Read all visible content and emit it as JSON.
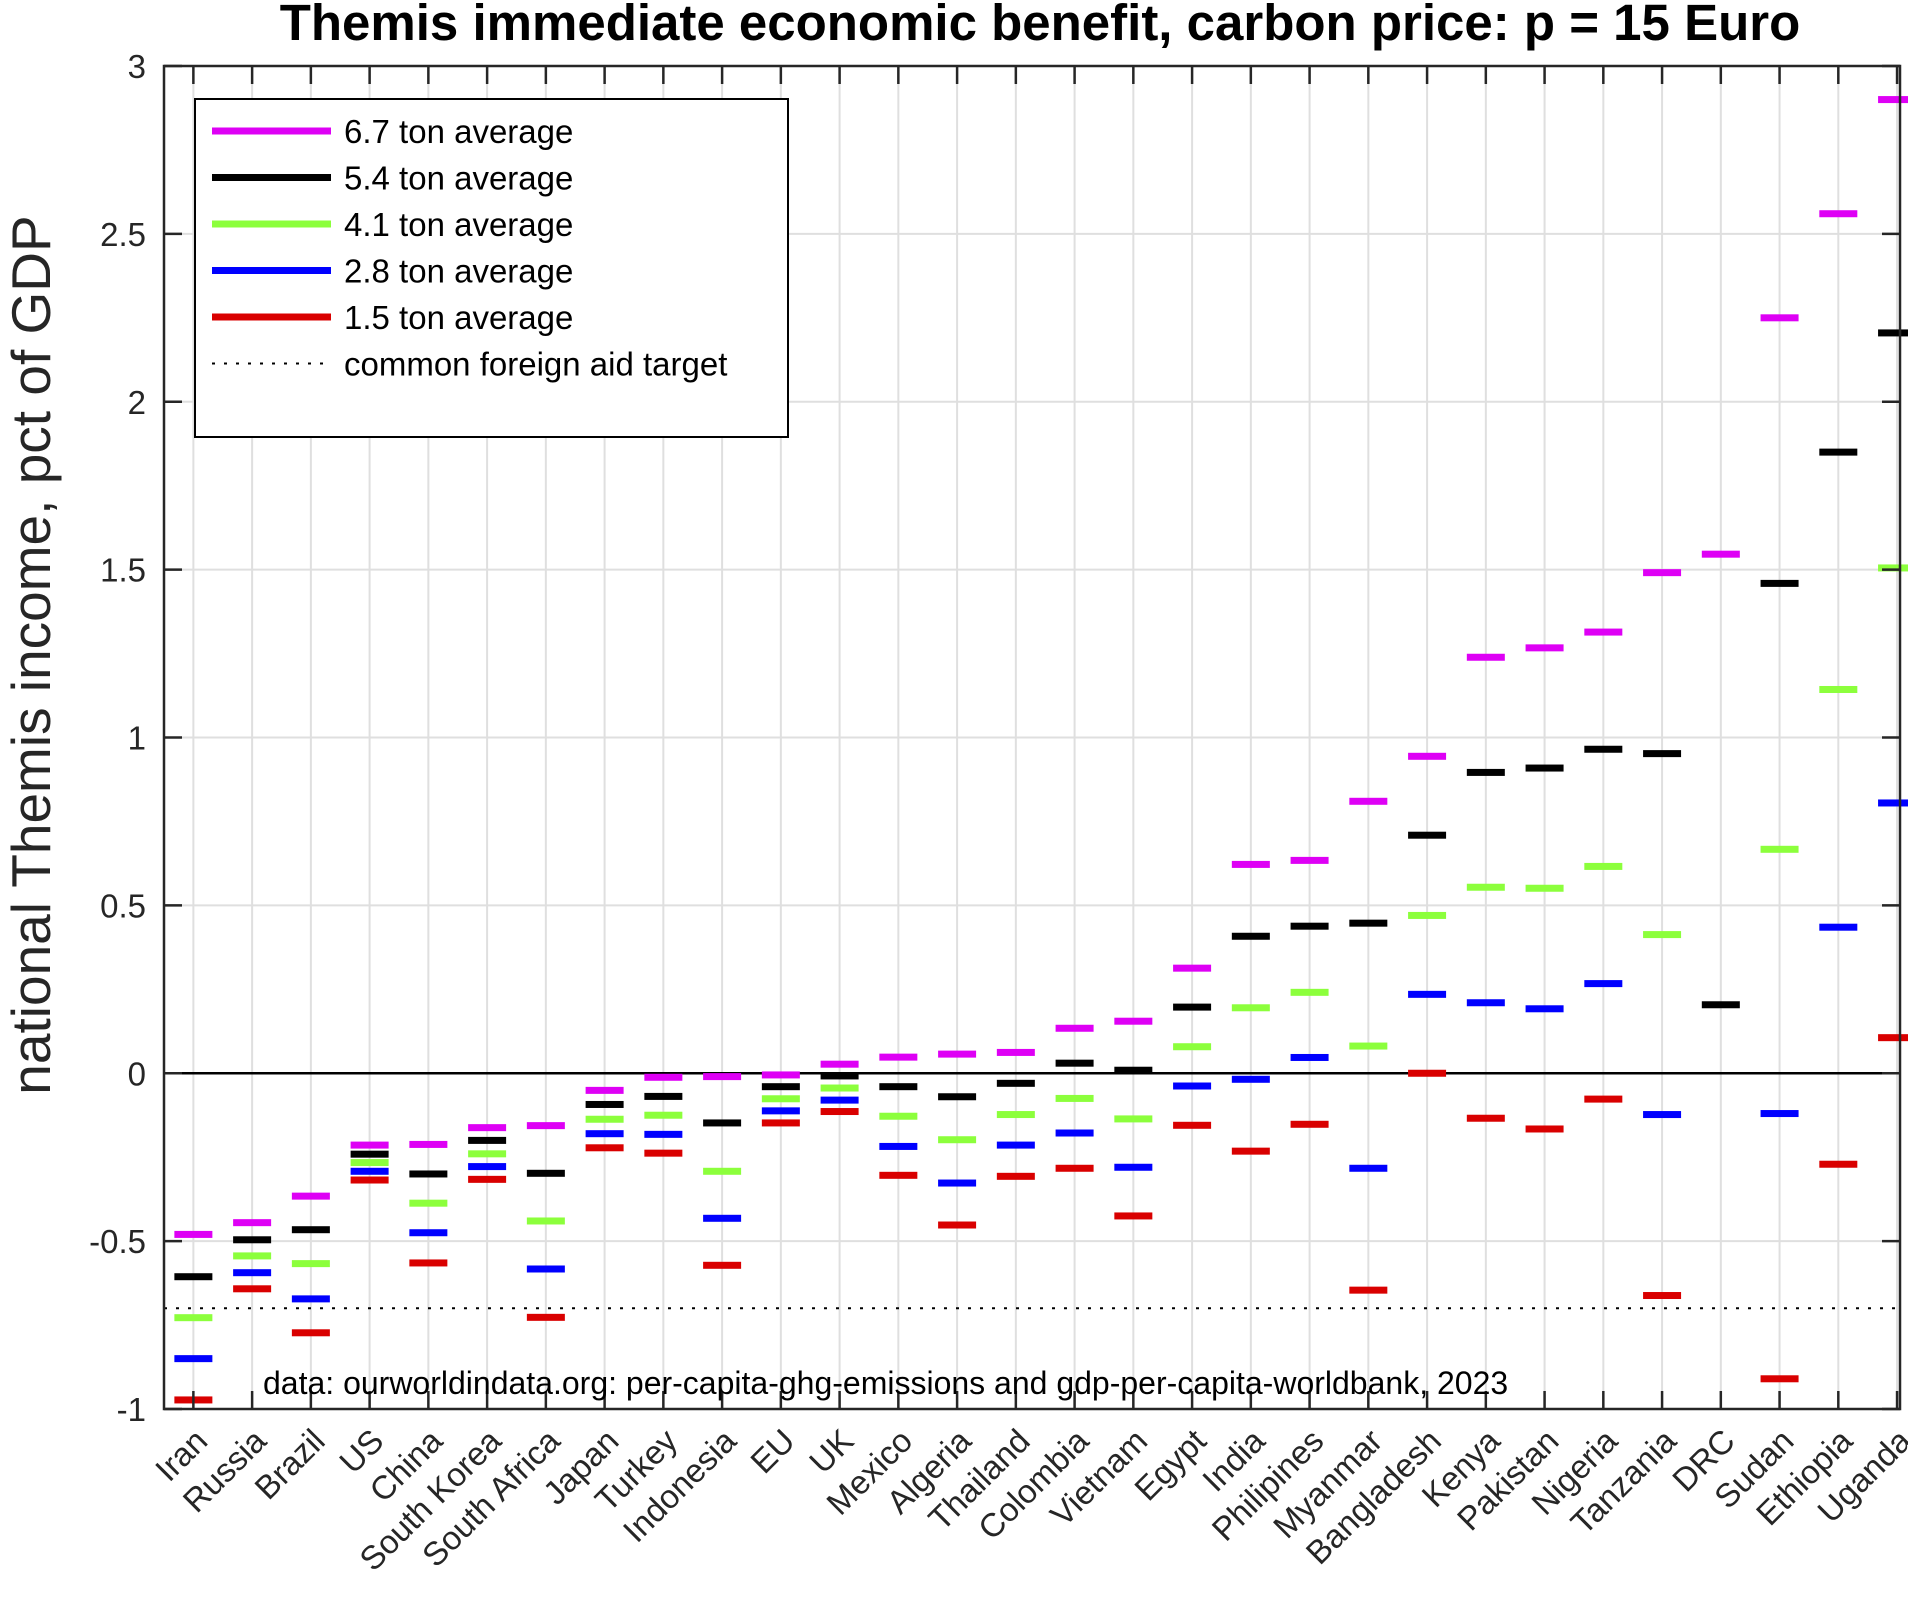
{
  "chart_data": {
    "type": "scatter",
    "marker": "horizontal-dash",
    "title": "Themis immediate economic benefit, carbon price: p = 15 Euro",
    "xlabel": "",
    "ylabel": "national Themis income, pct of GDP",
    "ylim": [
      -1,
      3
    ],
    "xlim": [
      0.5,
      30.05
    ],
    "yticks": [
      -1,
      -0.5,
      0,
      0.5,
      1,
      1.5,
      2,
      2.5,
      3
    ],
    "ytick_labels": [
      "-1",
      "-0.5",
      "0",
      "0.5",
      "1",
      "1.5",
      "2",
      "2.5",
      "3"
    ],
    "grid": true,
    "legend_position": "top-left",
    "categories": [
      "Iran",
      "Russia",
      "Brazil",
      "US",
      "China",
      "South Korea",
      "South Africa",
      "Japan",
      "Turkey",
      "Indonesia",
      "EU",
      "UK",
      "Mexico",
      "Algeria",
      "Thailand",
      "Colombia",
      "Vietnam",
      "Egypt",
      "India",
      "Philipines",
      "Myanmar",
      "Bangladesh",
      "Kenya",
      "Pakistan",
      "Nigeria",
      "Tanzania",
      "DRC",
      "Sudan",
      "Ethiopia",
      "Uganda"
    ],
    "series": [
      {
        "name": "6.7 ton average",
        "color": "#DE00F5",
        "values": [
          -0.48,
          -0.445,
          -0.366,
          -0.214,
          -0.212,
          -0.162,
          -0.156,
          -0.051,
          -0.012,
          -0.01,
          -0.005,
          0.027,
          0.048,
          0.057,
          0.062,
          0.134,
          0.155,
          0.313,
          0.622,
          0.634,
          0.81,
          0.944,
          1.239,
          1.267,
          1.314,
          1.491,
          1.546,
          2.25,
          2.56,
          2.9
        ]
      },
      {
        "name": "5.4 ton average",
        "color": "#000000",
        "values": [
          -0.606,
          -0.496,
          -0.466,
          -0.241,
          -0.3,
          -0.2,
          -0.298,
          -0.093,
          -0.069,
          -0.148,
          -0.04,
          -0.008,
          -0.04,
          -0.07,
          -0.03,
          0.03,
          0.009,
          0.197,
          0.408,
          0.438,
          0.447,
          0.709,
          0.896,
          0.909,
          0.965,
          0.952,
          0.204,
          1.459,
          1.85,
          2.205
        ]
      },
      {
        "name": "4.1 ton average",
        "color": "#8CFF3C",
        "values": [
          -0.728,
          -0.544,
          -0.567,
          -0.266,
          -0.387,
          -0.24,
          -0.44,
          -0.137,
          -0.125,
          -0.292,
          -0.076,
          -0.044,
          -0.128,
          -0.198,
          -0.123,
          -0.075,
          -0.136,
          0.079,
          0.195,
          0.241,
          0.081,
          0.47,
          0.554,
          0.551,
          0.616,
          0.413,
          null,
          0.667,
          1.143,
          1.505
        ]
      },
      {
        "name": "2.8 ton average",
        "color": "#0000FF",
        "values": [
          -0.85,
          -0.594,
          -0.672,
          -0.292,
          -0.475,
          -0.278,
          -0.583,
          -0.18,
          -0.182,
          -0.432,
          -0.112,
          -0.08,
          -0.218,
          -0.327,
          -0.214,
          -0.178,
          -0.28,
          -0.038,
          -0.018,
          0.047,
          -0.283,
          0.235,
          0.21,
          0.192,
          0.267,
          -0.123,
          null,
          -0.12,
          0.435,
          0.805
        ]
      },
      {
        "name": "1.5 ton average",
        "color": "#D90000",
        "values": [
          -0.973,
          -0.642,
          -0.773,
          -0.318,
          -0.565,
          -0.316,
          -0.727,
          -0.222,
          -0.238,
          -0.572,
          -0.148,
          -0.114,
          -0.304,
          -0.452,
          -0.307,
          -0.283,
          -0.425,
          -0.155,
          -0.232,
          -0.152,
          -0.646,
          0.0,
          -0.134,
          -0.166,
          -0.077,
          -0.662,
          null,
          -0.91,
          -0.271,
          0.106
        ]
      }
    ],
    "reference_lines": [
      {
        "name": "common foreign aid target",
        "y": -0.7,
        "style": "dotted",
        "color": "#000000"
      },
      {
        "name": "zero",
        "y": 0,
        "style": "solid",
        "color": "#000000"
      }
    ],
    "legend": [
      "6.7 ton average",
      "5.4 ton average",
      "4.1 ton average",
      "2.8 ton average",
      "1.5 ton average",
      "common foreign aid target"
    ],
    "annotation": "data: ourworldindata.org: per-capita-ghg-emissions and gdp-per-capita-worldbank, 2023"
  }
}
